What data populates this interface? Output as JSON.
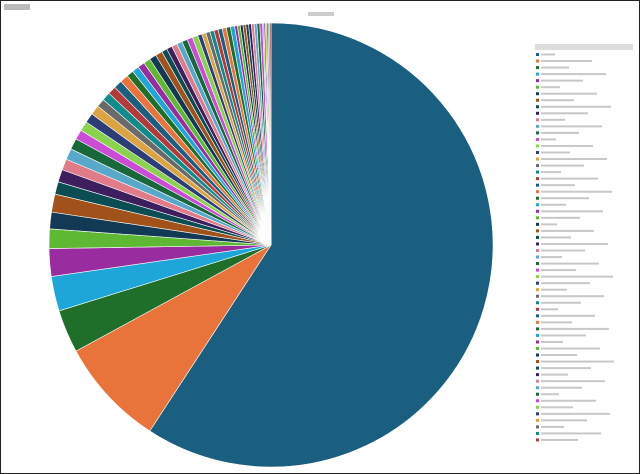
{
  "chart_data": {
    "type": "pie",
    "values": [
      58.6,
      7.8,
      3.1,
      2.5,
      2.0,
      1.4,
      1.2,
      1.3,
      0.9,
      0.9,
      0.8,
      0.8,
      0.8,
      0.7,
      0.7,
      0.7,
      0.7,
      0.6,
      0.6,
      0.6,
      0.6,
      0.6,
      0.5,
      0.5,
      0.5,
      0.5,
      0.5,
      0.5,
      0.4,
      0.4,
      0.4,
      0.4,
      0.4,
      0.4,
      0.4,
      0.3,
      0.3,
      0.3,
      0.3,
      0.3,
      0.3,
      0.3,
      0.3,
      0.3,
      0.2,
      0.2,
      0.2,
      0.2,
      0.2,
      0.2,
      0.2,
      0.2,
      0.2,
      0.2,
      0.1,
      0.1,
      0.1,
      0.1,
      0.1,
      0.1
    ],
    "palette": [
      "#1a5e80",
      "#e8743b",
      "#1f6f2a",
      "#1ea6d9",
      "#992c9e",
      "#5fb833",
      "#123a55",
      "#a0521a",
      "#0b4d52",
      "#3d1f5e",
      "#e07b8a",
      "#58a9c9",
      "#18683a",
      "#c94bd6",
      "#8ad24e",
      "#2c3e78",
      "#d9a441",
      "#6a6a6a",
      "#0e8b8b",
      "#b33a3a"
    ],
    "start_angle": 0,
    "direction": "clockwise"
  }
}
